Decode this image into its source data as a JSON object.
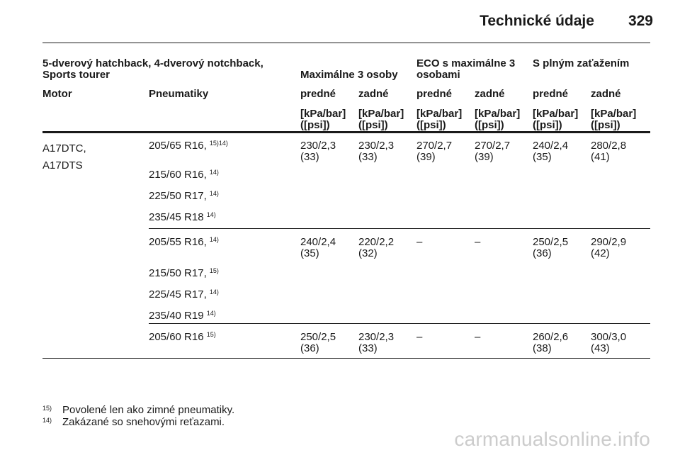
{
  "header": {
    "title": "Technické údaje",
    "page_number": "329"
  },
  "table": {
    "group_headers": {
      "model": "5-dverový hatchback, 4-dverový notchback, Sports tourer",
      "max3": "Maximálne 3 osoby",
      "eco": "ECO s maximálne 3 osobami",
      "full": "S plným zaťažením"
    },
    "column_headers": {
      "motor": "Motor",
      "tyres": "Pneumatiky",
      "front1": "predné",
      "rear1": "zadné",
      "front2": "predné",
      "rear2": "zadné",
      "front3": "predné",
      "rear3": "zadné"
    },
    "unit_line1": "[kPa/bar]",
    "unit_line2": "([psi])",
    "engines": [
      "A17DTC,",
      "A17DTS"
    ],
    "groups": [
      {
        "tyres": [
          {
            "size": "205/65 R16,",
            "note": "15)14)"
          },
          {
            "size": "215/60 R16,",
            "note": "14)"
          },
          {
            "size": "225/50 R17,",
            "note": "14)"
          },
          {
            "size": "235/45 R18",
            "note": "14)"
          }
        ],
        "values": [
          {
            "a": "230/2,3",
            "b": "(33)"
          },
          {
            "a": "230/2,3",
            "b": "(33)"
          },
          {
            "a": "270/2,7",
            "b": "(39)"
          },
          {
            "a": "270/2,7",
            "b": "(39)"
          },
          {
            "a": "240/2,4",
            "b": "(35)"
          },
          {
            "a": "280/2,8",
            "b": "(41)"
          }
        ]
      },
      {
        "tyres": [
          {
            "size": "205/55 R16,",
            "note": "14)"
          },
          {
            "size": "215/50 R17,",
            "note": "15)"
          },
          {
            "size": "225/45 R17,",
            "note": "14)"
          },
          {
            "size": "235/40 R19",
            "note": "14)"
          }
        ],
        "values": [
          {
            "a": "240/2,4",
            "b": "(35)"
          },
          {
            "a": "220/2,2",
            "b": "(32)"
          },
          {
            "a": "–",
            "b": ""
          },
          {
            "a": "–",
            "b": ""
          },
          {
            "a": "250/2,5",
            "b": "(36)"
          },
          {
            "a": "290/2,9",
            "b": "(42)"
          }
        ]
      },
      {
        "tyres": [
          {
            "size": "205/60 R16",
            "note": "15)"
          }
        ],
        "values": [
          {
            "a": "250/2,5",
            "b": "(36)"
          },
          {
            "a": "230/2,3",
            "b": "(33)"
          },
          {
            "a": "–",
            "b": ""
          },
          {
            "a": "–",
            "b": ""
          },
          {
            "a": "260/2,6",
            "b": "(38)"
          },
          {
            "a": "300/3,0",
            "b": "(43)"
          }
        ]
      }
    ]
  },
  "footnotes": [
    {
      "mark": "15)",
      "text": "Povolené len ako zimné pneumatiky."
    },
    {
      "mark": "14)",
      "text": "Zakázané so snehovými reťazami."
    }
  ],
  "watermark": "carmanualsonline.info"
}
